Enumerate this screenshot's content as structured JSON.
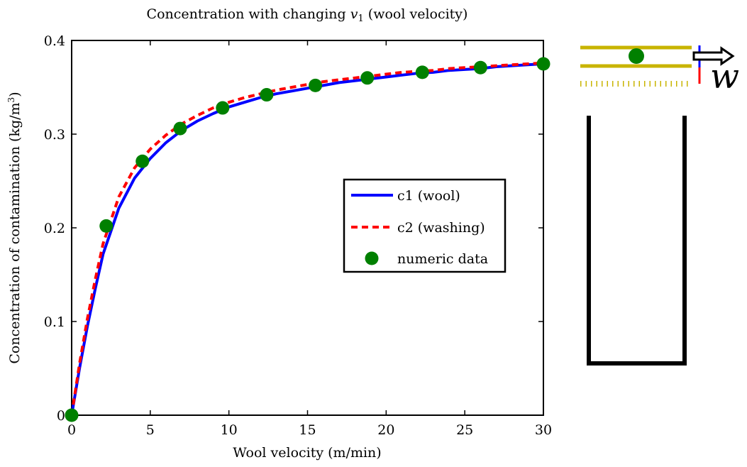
{
  "chart_data": {
    "type": "line",
    "title_prefix": "Concentration with changing ",
    "title_var": "v",
    "title_sub": "1",
    "title_suffix": " (wool velocity)",
    "xlabel": "Wool velocity (m/min)",
    "ylabel_main": "Concentration of contamination (kg/m",
    "ylabel_sup": "3",
    "ylabel_end": ")",
    "xlim": [
      0,
      30
    ],
    "ylim": [
      0,
      0.4
    ],
    "xticks": [
      0,
      5,
      10,
      15,
      20,
      25,
      30
    ],
    "yticks": [
      0,
      0.1,
      0.2,
      0.3,
      0.4
    ],
    "ytick_labels": [
      "0",
      "0.1",
      "0.2",
      "0.3",
      "0.4"
    ],
    "legend_position": "center-right",
    "series": [
      {
        "name": "c1 (wool)",
        "style": "solid",
        "color": "#0000ff",
        "x": [
          0,
          0.5,
          1,
          1.5,
          2,
          3,
          4,
          5,
          6,
          7,
          8,
          9,
          10,
          11,
          12,
          13,
          14,
          15,
          16,
          17,
          18,
          19,
          20,
          21,
          22,
          23,
          24,
          25,
          26,
          27,
          28,
          29,
          30
        ],
        "y": [
          0,
          0.05,
          0.095,
          0.135,
          0.172,
          0.221,
          0.253,
          0.274,
          0.291,
          0.304,
          0.314,
          0.322,
          0.329,
          0.334,
          0.339,
          0.343,
          0.346,
          0.349,
          0.352,
          0.355,
          0.357,
          0.359,
          0.361,
          0.363,
          0.365,
          0.366,
          0.368,
          0.369,
          0.37,
          0.372,
          0.373,
          0.374,
          0.375
        ]
      },
      {
        "name": "c2 (washing)",
        "style": "dashed",
        "color": "#ff0000",
        "x": [
          0,
          0.5,
          1,
          1.5,
          2,
          3,
          4,
          5,
          6,
          7,
          8,
          9,
          10,
          11,
          12,
          13,
          14,
          15,
          16,
          17,
          18,
          19,
          20,
          21,
          22,
          23,
          24,
          25,
          26,
          27,
          28,
          29,
          30
        ],
        "y": [
          0,
          0.055,
          0.103,
          0.145,
          0.183,
          0.233,
          0.264,
          0.284,
          0.299,
          0.311,
          0.32,
          0.328,
          0.334,
          0.339,
          0.343,
          0.347,
          0.35,
          0.353,
          0.356,
          0.358,
          0.36,
          0.362,
          0.364,
          0.366,
          0.367,
          0.368,
          0.37,
          0.371,
          0.372,
          0.373,
          0.374,
          0.375,
          0.376
        ]
      },
      {
        "name": "numeric data",
        "style": "markers",
        "color": "#008000",
        "x": [
          0,
          2.2,
          4.5,
          6.9,
          9.6,
          12.4,
          15.5,
          18.8,
          22.3,
          26.0,
          30.0
        ],
        "y": [
          0,
          0.202,
          0.271,
          0.306,
          0.328,
          0.342,
          0.352,
          0.36,
          0.366,
          0.371,
          0.375
        ]
      }
    ]
  },
  "diagram": {
    "label": "w",
    "colors": {
      "wool": "#c8b400",
      "tank": "#000000",
      "ball": "#008000",
      "blue": "#0000ff",
      "red": "#ff0000"
    }
  }
}
